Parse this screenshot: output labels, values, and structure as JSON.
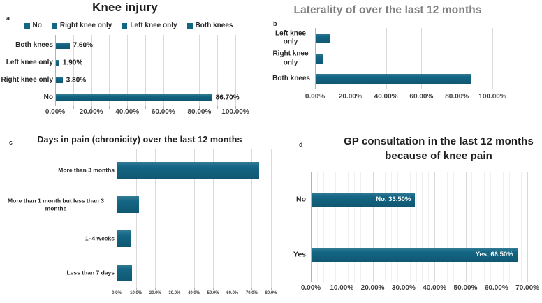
{
  "figure": {
    "background": "#ffffff",
    "bar_color": "#136684",
    "grid_color": "#d9d9d9",
    "minor_grid_color": "#efefef",
    "axis_color": "#b3b3b3",
    "title_color": "#1f1f1f"
  },
  "chart_data": [
    {
      "id": "a",
      "panel_label": "a",
      "type": "bar",
      "orientation": "horizontal",
      "title": "Knee injury",
      "title_color": "#1f1f1f",
      "legend": [
        "No",
        "Right knee only",
        "Left knee only",
        "Both knees"
      ],
      "legend_position": "top",
      "categories": [
        "Both knees",
        "Left knee only",
        "Right knee only",
        "No"
      ],
      "values": [
        7.6,
        1.9,
        3.8,
        86.7
      ],
      "data_labels": [
        "7.60%",
        "1.90%",
        "3.80%",
        "86.70%"
      ],
      "xlim": [
        0,
        100
      ],
      "x_ticks": [
        "0.00%",
        "20.00%",
        "40.00%",
        "60.00%",
        "80.00%",
        "100.00%"
      ],
      "grid_step": 10,
      "grid": true
    },
    {
      "id": "b",
      "panel_label": "b",
      "type": "bar",
      "orientation": "horizontal",
      "title": "Laterality of over the last 12 months",
      "title_color": "#7f7f7f",
      "categories": [
        "Left knee only",
        "Right knee only",
        "Both knees"
      ],
      "values": [
        8.1,
        4.1,
        87.8
      ],
      "xlim": [
        0,
        100
      ],
      "x_ticks": [
        "0.00%",
        "20.00%",
        "40.00%",
        "60.00%",
        "80.00%",
        "100.00%"
      ],
      "grid_step": 20,
      "grid": true
    },
    {
      "id": "c",
      "panel_label": "c",
      "type": "bar",
      "orientation": "horizontal",
      "title": "Days in pain (chronicity) over the last 12 months",
      "title_color": "#1f1f1f",
      "categories": [
        "More than 3 months",
        "More than 1 month but less than 3 months",
        "1–4 weeks",
        "Less than 7 days"
      ],
      "values": [
        73.6,
        11.4,
        7.3,
        7.7
      ],
      "xlim": [
        0,
        80
      ],
      "x_ticks": [
        "0.0%",
        "10.0%",
        "20.0%",
        "30.0%",
        "40.0%",
        "50.0%",
        "60.0%",
        "70.0%",
        "80.0%"
      ],
      "grid_step": 10,
      "grid": true
    },
    {
      "id": "d",
      "panel_label": "d",
      "type": "bar",
      "orientation": "horizontal",
      "title": "GP consultation in the last 12 months because of knee pain",
      "title_lines": [
        "GP consultation in the last 12 months",
        "because of knee pain"
      ],
      "title_color": "#1f1f1f",
      "categories": [
        "No",
        "Yes"
      ],
      "values": [
        33.5,
        66.5
      ],
      "bar_labels": [
        "No, 33.50%",
        "Yes, 66.50%"
      ],
      "bar_label_color": "#ffffff",
      "xlim": [
        0,
        70
      ],
      "x_ticks": [
        "0.00%",
        "10.00%",
        "20.00%",
        "30.00%",
        "40.00%",
        "50.00%",
        "60.00%",
        "70.00%"
      ],
      "grid_step": 10,
      "minor_grid_step": 2,
      "grid": true
    }
  ]
}
